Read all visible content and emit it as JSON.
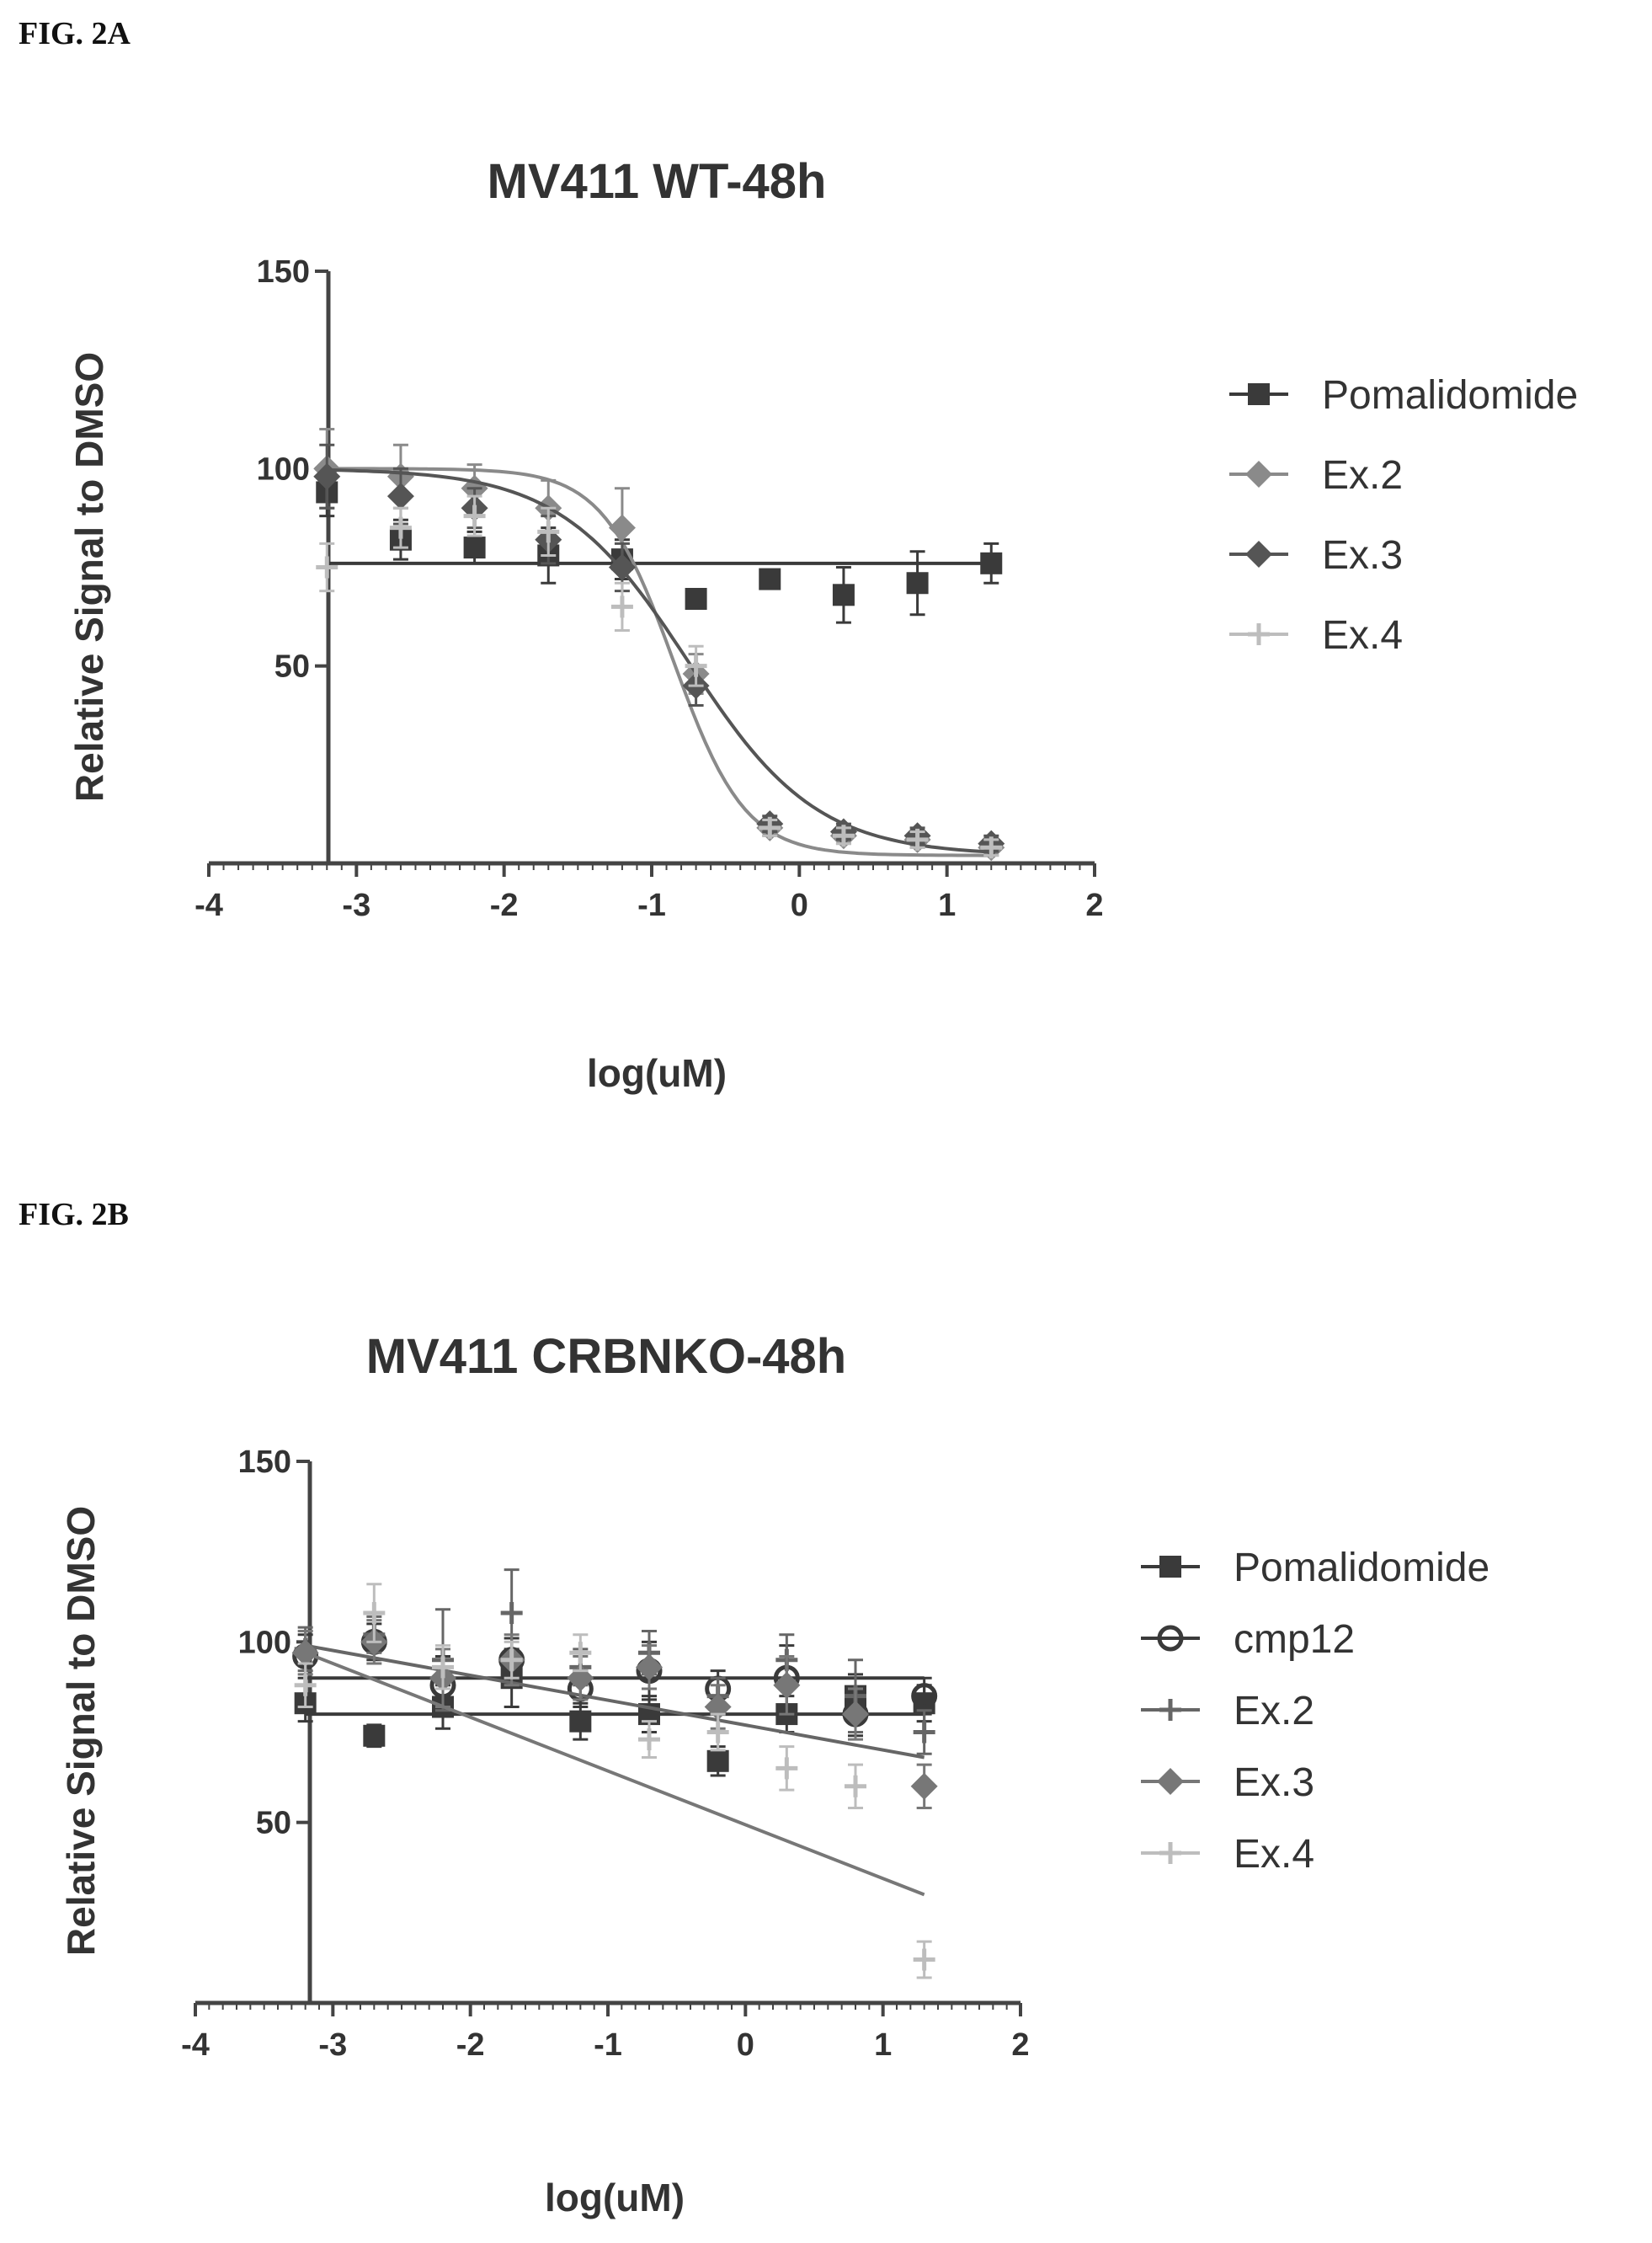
{
  "figures": [
    {
      "label": "FIG. 2A"
    },
    {
      "label": "FIG. 2B"
    }
  ],
  "chart_data": [
    {
      "type": "scatter",
      "title": "MV411 WT-48h",
      "xlabel": "log(uM)",
      "ylabel": "Relative Signal to DMSO",
      "xlim": [
        -4,
        2
      ],
      "ylim": [
        0,
        150
      ],
      "xticks": [
        "-4",
        "-3",
        "-2",
        "-1",
        "0",
        "1",
        "2"
      ],
      "yticks": [
        "50",
        "100",
        "150"
      ],
      "legend_position": "right",
      "series": [
        {
          "name": "Pomalidomide",
          "color": "#3a3a3a",
          "marker": "square",
          "x": [
            -3.2,
            -2.7,
            -2.2,
            -1.7,
            -1.2,
            -0.7,
            -0.2,
            0.3,
            0.8,
            1.3
          ],
          "y": [
            94,
            82,
            80,
            78,
            77,
            67,
            72,
            68,
            71,
            76
          ],
          "err": [
            6,
            5,
            4,
            7,
            5,
            2,
            2,
            7,
            8,
            5
          ],
          "curve": {
            "type": "flat",
            "y": 76
          }
        },
        {
          "name": "Ex.2",
          "color": "#8a8a8a",
          "marker": "diamond",
          "x": [
            -3.2,
            -2.7,
            -2.2,
            -1.7,
            -1.2,
            -0.7,
            -0.2,
            0.3,
            0.8,
            1.3
          ],
          "y": [
            100,
            98,
            95,
            90,
            85,
            48,
            9,
            7,
            6,
            4
          ],
          "err": [
            10,
            8,
            6,
            7,
            10,
            5,
            2,
            2,
            2,
            2
          ],
          "curve": {
            "type": "sigmoid",
            "top": 100,
            "bottom": 2,
            "ic50": -0.85,
            "slope": 1.8
          }
        },
        {
          "name": "Ex.3",
          "color": "#555555",
          "marker": "diamond",
          "x": [
            -3.2,
            -2.7,
            -2.2,
            -1.7,
            -1.2,
            -0.7,
            -0.2,
            0.3,
            0.8,
            1.3
          ],
          "y": [
            98,
            93,
            90,
            82,
            75,
            45,
            10,
            8,
            7,
            5
          ],
          "err": [
            8,
            7,
            5,
            6,
            6,
            5,
            2,
            2,
            2,
            2
          ],
          "curve": {
            "type": "sigmoid",
            "top": 100,
            "bottom": 2,
            "ic50": -0.75,
            "slope": 1.0
          }
        },
        {
          "name": "Ex.4",
          "color": "#bdbdbd",
          "marker": "plus",
          "x": [
            -3.2,
            -2.7,
            -2.2,
            -1.7,
            -1.2,
            -0.7,
            -0.2,
            0.3,
            0.8,
            1.3
          ],
          "y": [
            75,
            85,
            88,
            84,
            65,
            50,
            9,
            7,
            6,
            4
          ],
          "err": [
            6,
            5,
            5,
            6,
            6,
            5,
            2,
            2,
            2,
            2
          ],
          "curve": null
        }
      ]
    },
    {
      "type": "scatter",
      "title": "MV411 CRBNKO-48h",
      "xlabel": "log(uM)",
      "ylabel": "Relative Signal to DMSO",
      "xlim": [
        -4,
        2
      ],
      "ylim": [
        0,
        150
      ],
      "xticks": [
        "-4",
        "-3",
        "-2",
        "-1",
        "0",
        "1",
        "2"
      ],
      "yticks": [
        "50",
        "100",
        "150"
      ],
      "legend_position": "right",
      "series": [
        {
          "name": "Pomalidomide",
          "color": "#3a3a3a",
          "marker": "square",
          "x": [
            -3.2,
            -2.7,
            -2.2,
            -1.7,
            -1.2,
            -0.7,
            -0.2,
            0.3,
            0.8,
            1.3
          ],
          "y": [
            83,
            74,
            82,
            90,
            78,
            80,
            67,
            80,
            85,
            83
          ],
          "err": [
            5,
            3,
            6,
            8,
            5,
            5,
            4,
            5,
            6,
            5
          ],
          "curve": {
            "type": "flat",
            "y": 80
          }
        },
        {
          "name": "cmp12",
          "color": "#3a3a3a",
          "marker": "circle",
          "x": [
            -3.2,
            -2.7,
            -2.2,
            -1.7,
            -1.2,
            -0.7,
            -0.2,
            0.3,
            0.8,
            1.3
          ],
          "y": [
            96,
            100,
            88,
            95,
            87,
            92,
            87,
            90,
            80,
            85
          ],
          "err": [
            6,
            5,
            8,
            6,
            5,
            8,
            5,
            9,
            6,
            5
          ],
          "curve": {
            "type": "flat",
            "y": 90
          }
        },
        {
          "name": "Ex.2",
          "color": "#666666",
          "marker": "plus",
          "x": [
            -3.2,
            -2.7,
            -2.2,
            -1.7,
            -1.2,
            -0.7,
            -0.2,
            0.3,
            0.8,
            1.3
          ],
          "y": [
            98,
            102,
            95,
            108,
            93,
            97,
            85,
            95,
            85,
            75
          ],
          "err": [
            6,
            5,
            14,
            12,
            5,
            6,
            5,
            7,
            10,
            6
          ],
          "curve": {
            "type": "line",
            "from": [
              -3.2,
              99
            ],
            "to": [
              1.3,
              68
            ]
          }
        },
        {
          "name": "Ex.3",
          "color": "#777777",
          "marker": "diamond",
          "x": [
            -3.2,
            -2.7,
            -2.2,
            -1.7,
            -1.2,
            -0.7,
            -0.2,
            0.3,
            0.8,
            1.3
          ],
          "y": [
            97,
            100,
            90,
            95,
            90,
            93,
            82,
            88,
            80,
            60
          ],
          "err": [
            6,
            6,
            8,
            7,
            6,
            6,
            6,
            8,
            7,
            6
          ],
          "curve": {
            "type": "line",
            "from": [
              -3.2,
              97
            ],
            "to": [
              1.3,
              30
            ]
          }
        },
        {
          "name": "Ex.4",
          "color": "#bdbdbd",
          "marker": "plus",
          "x": [
            -3.2,
            -2.7,
            -2.2,
            -1.7,
            -1.2,
            -0.7,
            -0.2,
            0.3,
            0.8,
            1.3
          ],
          "y": [
            88,
            108,
            93,
            95,
            97,
            73,
            75,
            65,
            60,
            12
          ],
          "err": [
            6,
            8,
            6,
            5,
            5,
            5,
            5,
            6,
            6,
            5
          ],
          "curve": null
        }
      ]
    }
  ]
}
